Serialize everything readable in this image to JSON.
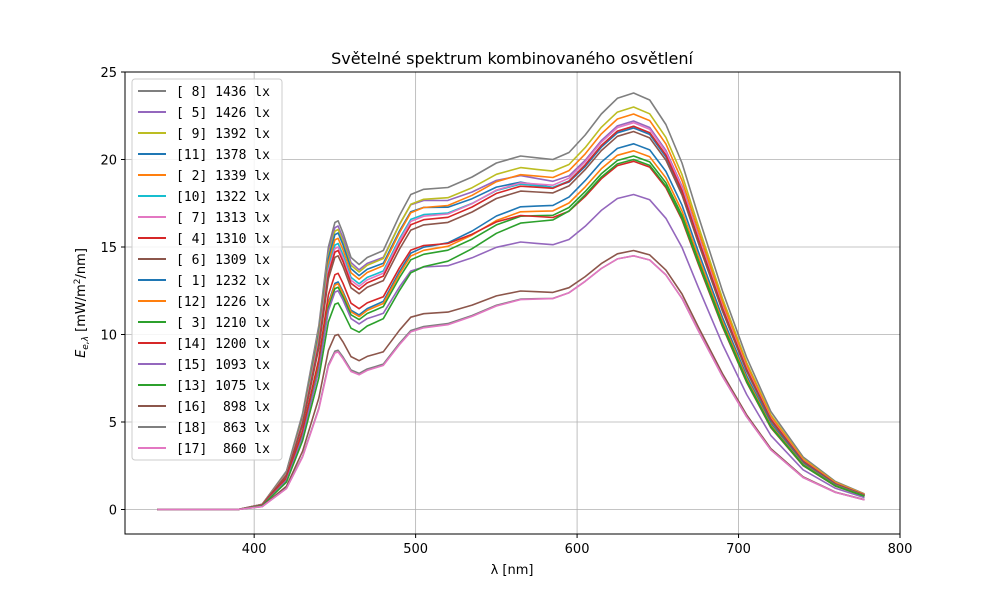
{
  "chart_data": {
    "type": "line",
    "title": "Světelné spektrum kombinovaného osvětlení",
    "xlabel": "λ [nm]",
    "ylabel_parts": {
      "e": "E",
      "sub": "e,λ",
      "pre": " [mW/m",
      "sup": "2",
      "post": "/nm]"
    },
    "xlim": [
      320,
      800
    ],
    "ylim": [
      -1.4,
      25
    ],
    "xticks": [
      400,
      500,
      600,
      700,
      800
    ],
    "yticks": [
      0,
      5,
      10,
      15,
      20,
      25
    ],
    "xtick_labels": [
      "400",
      "500",
      "600",
      "700",
      "800"
    ],
    "ytick_labels": [
      "0",
      "5",
      "10",
      "15",
      "20",
      "25"
    ],
    "grid": true,
    "legend_location": "upper-left",
    "x_range_nm": [
      340,
      778
    ],
    "shape_keys": {
      "wavelength_nm": [
        340,
        390,
        405,
        420,
        430,
        440,
        446,
        450,
        452,
        455,
        460,
        465,
        470,
        475,
        480,
        490,
        497,
        505,
        520,
        535,
        550,
        565,
        575,
        585,
        595,
        605,
        615,
        625,
        635,
        645,
        655,
        665,
        675,
        690,
        705,
        720,
        740,
        760,
        778
      ],
      "reference_profile_series_8": [
        0.0,
        0.0,
        0.3,
        2.2,
        5.5,
        10.5,
        15.0,
        16.4,
        16.5,
        15.8,
        14.4,
        14.0,
        14.4,
        14.6,
        14.8,
        16.8,
        18.0,
        18.3,
        18.4,
        19.0,
        19.8,
        20.2,
        20.1,
        20.0,
        20.4,
        21.4,
        22.6,
        23.5,
        23.8,
        23.4,
        22.0,
        19.8,
        16.8,
        12.5,
        8.7,
        5.6,
        3.0,
        1.6,
        0.9
      ]
    },
    "series": [
      {
        "name": "[ 8] 1436 lx",
        "color": "#7f7f7f",
        "level_at_peak": 23.8,
        "level_at_blue_peak": 16.5
      },
      {
        "name": "[ 5] 1426 lx",
        "color": "#9467bd",
        "level_at_peak": 22.2,
        "level_at_blue_peak": 16.2
      },
      {
        "name": "[ 9] 1392 lx",
        "color": "#bcbd22",
        "level_at_peak": 23.0,
        "level_at_blue_peak": 16.0
      },
      {
        "name": "[11] 1378 lx",
        "color": "#1f77b4",
        "level_at_peak": 21.8,
        "level_at_blue_peak": 15.8
      },
      {
        "name": "[ 2] 1339 lx",
        "color": "#ff7f0e",
        "level_at_peak": 22.6,
        "level_at_blue_peak": 15.5
      },
      {
        "name": "[10] 1322 lx",
        "color": "#17becf",
        "level_at_peak": 21.9,
        "level_at_blue_peak": 15.2
      },
      {
        "name": "[ 7] 1313 lx",
        "color": "#e377c2",
        "level_at_peak": 22.1,
        "level_at_blue_peak": 15.0
      },
      {
        "name": "[ 4] 1310 lx",
        "color": "#d62728",
        "level_at_peak": 21.9,
        "level_at_blue_peak": 14.8
      },
      {
        "name": "[ 6] 1309 lx",
        "color": "#8c564b",
        "level_at_peak": 21.6,
        "level_at_blue_peak": 14.5
      },
      {
        "name": "[ 1] 1232 lx",
        "color": "#1f77b4",
        "level_at_peak": 20.9,
        "level_at_blue_peak": 13.0
      },
      {
        "name": "[12] 1226 lx",
        "color": "#ff7f0e",
        "level_at_peak": 20.5,
        "level_at_blue_peak": 12.9
      },
      {
        "name": "[ 3] 1210 lx",
        "color": "#2ca02c",
        "level_at_peak": 20.2,
        "level_at_blue_peak": 12.7
      },
      {
        "name": "[14] 1200 lx",
        "color": "#d62728",
        "level_at_peak": 19.9,
        "level_at_blue_peak": 13.5
      },
      {
        "name": "[15] 1093 lx",
        "color": "#9467bd",
        "level_at_peak": 18.0,
        "level_at_blue_peak": 12.5
      },
      {
        "name": "[13] 1075 lx",
        "color": "#2ca02c",
        "level_at_peak": 20.0,
        "level_at_blue_peak": 11.8
      },
      {
        "name": "[16]  898 lx",
        "color": "#8c564b",
        "level_at_peak": 14.8,
        "level_at_blue_peak": 10.0
      },
      {
        "name": "[18]  863 lx",
        "color": "#7f7f7f",
        "level_at_peak": 14.5,
        "level_at_blue_peak": 9.1
      },
      {
        "name": "[17]  860 lx",
        "color": "#e377c2",
        "level_at_peak": 14.5,
        "level_at_blue_peak": 9.0
      }
    ]
  }
}
